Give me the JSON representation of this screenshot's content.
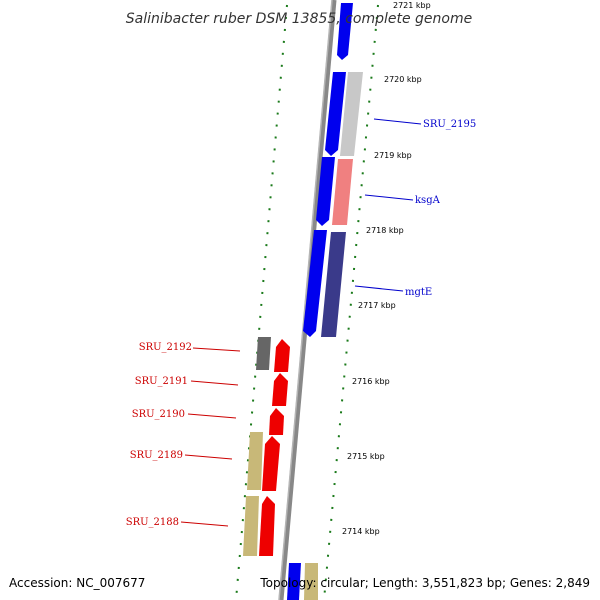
{
  "title": "Salinibacter ruber DSM 13855, complete genome",
  "footer": {
    "accession": "Accession: NC_007677",
    "topology": "Topology: circular; Length: 3,551,823 bp; Genes: 2,849"
  },
  "colors": {
    "backbone": "#888888",
    "tick": "#1a7a1a",
    "forward_label": "#0000cc",
    "reverse_label": "#cc0000",
    "blue_gene": "#0000ee",
    "red_gene": "#ee0000",
    "grey_gene": "#c8c8c8",
    "pink_gene": "#f08080",
    "navy_gene": "#3a3a8a",
    "darkgrey_gene": "#666666",
    "khaki_gene": "#c8b878"
  },
  "scale_ticks": [
    {
      "label": "2721 kbp"
    },
    {
      "label": "2720 kbp"
    },
    {
      "label": "2719 kbp"
    },
    {
      "label": "2718 kbp"
    },
    {
      "label": "2717 kbp"
    },
    {
      "label": "2716 kbp"
    },
    {
      "label": "2715 kbp"
    },
    {
      "label": "2714 kbp"
    }
  ],
  "gene_labels": {
    "forward": [
      "SRU_2195",
      "ksgA",
      "mgtE"
    ],
    "reverse": [
      "SRU_2192",
      "SRU_2191",
      "SRU_2190",
      "SRU_2189",
      "SRU_2188"
    ]
  }
}
